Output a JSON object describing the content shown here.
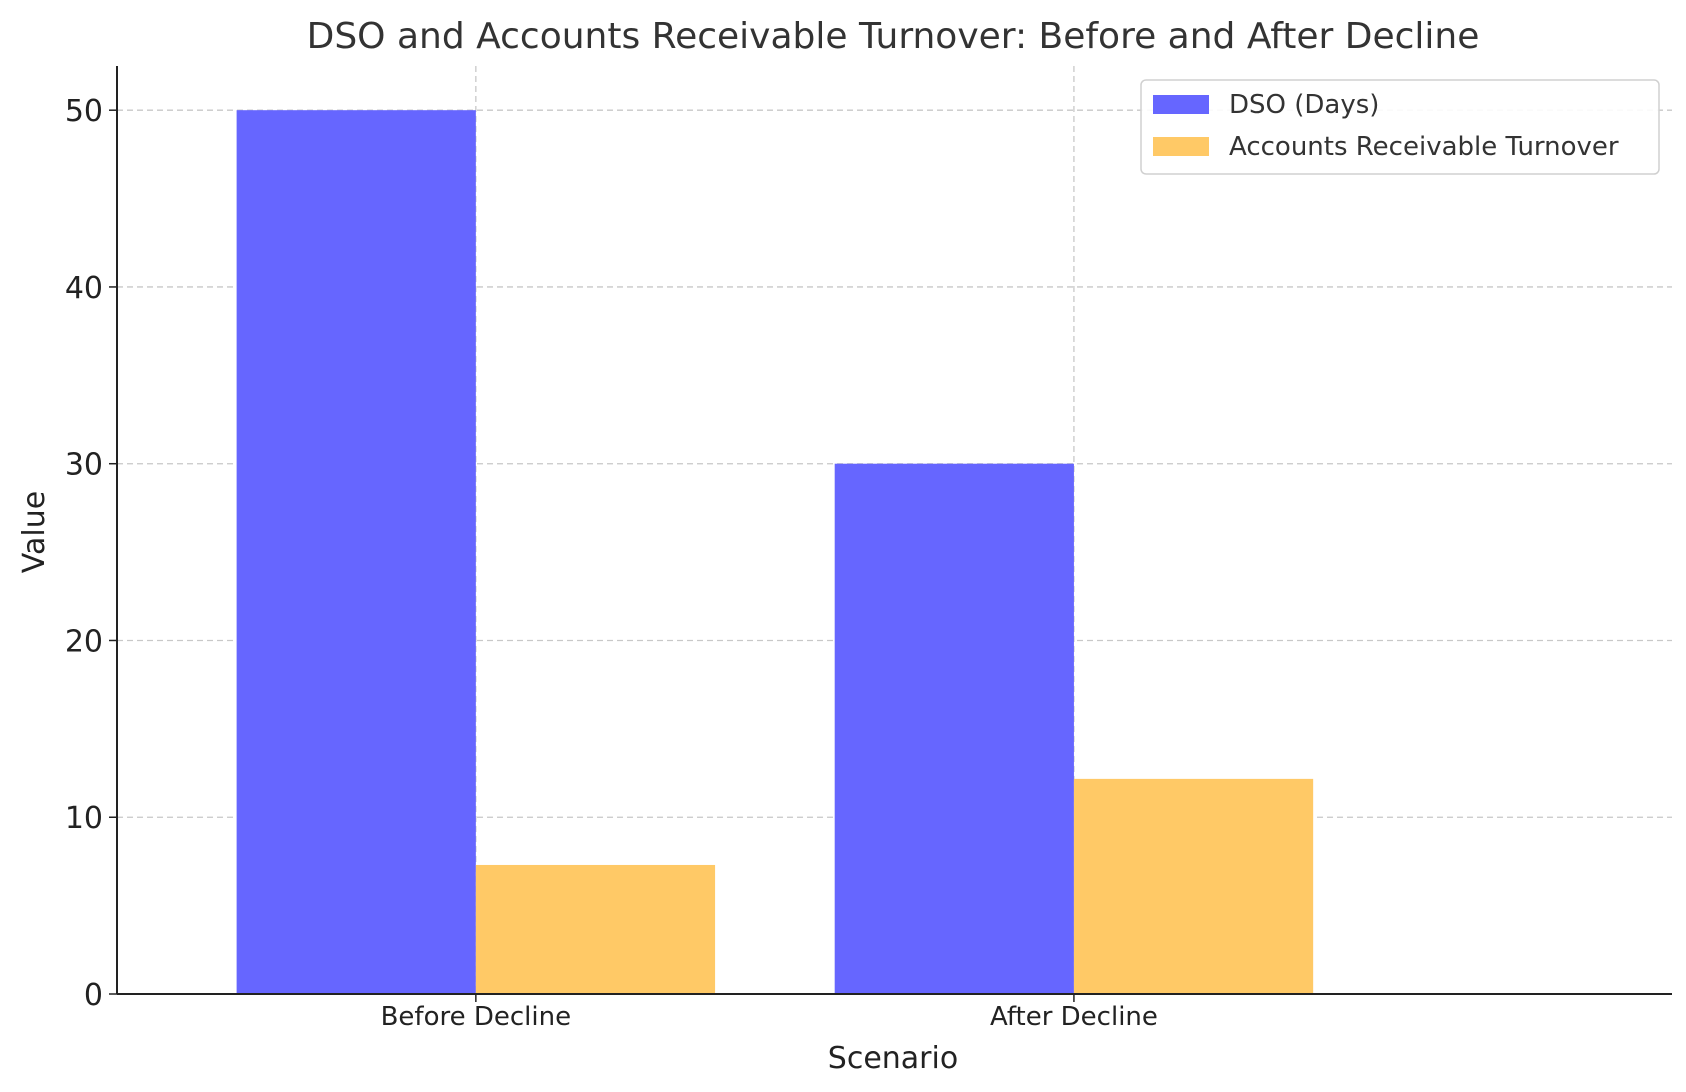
{
  "chart_data": {
    "type": "bar",
    "title": "DSO and Accounts Receivable Turnover: Before and After Decline",
    "xlabel": "Scenario",
    "ylabel": "Value",
    "categories": [
      "Before Decline",
      "After Decline"
    ],
    "series": [
      {
        "name": "DSO (Days)",
        "values": [
          50,
          30
        ],
        "color": "#6666ff"
      },
      {
        "name": "Accounts Receivable Turnover",
        "values": [
          7.3,
          12.17
        ],
        "color": "#ffc966"
      }
    ],
    "ylim": [
      0,
      52.5
    ],
    "yticks": [
      0,
      10,
      20,
      30,
      40,
      50
    ],
    "grid": true,
    "legend_position": "top-right"
  }
}
